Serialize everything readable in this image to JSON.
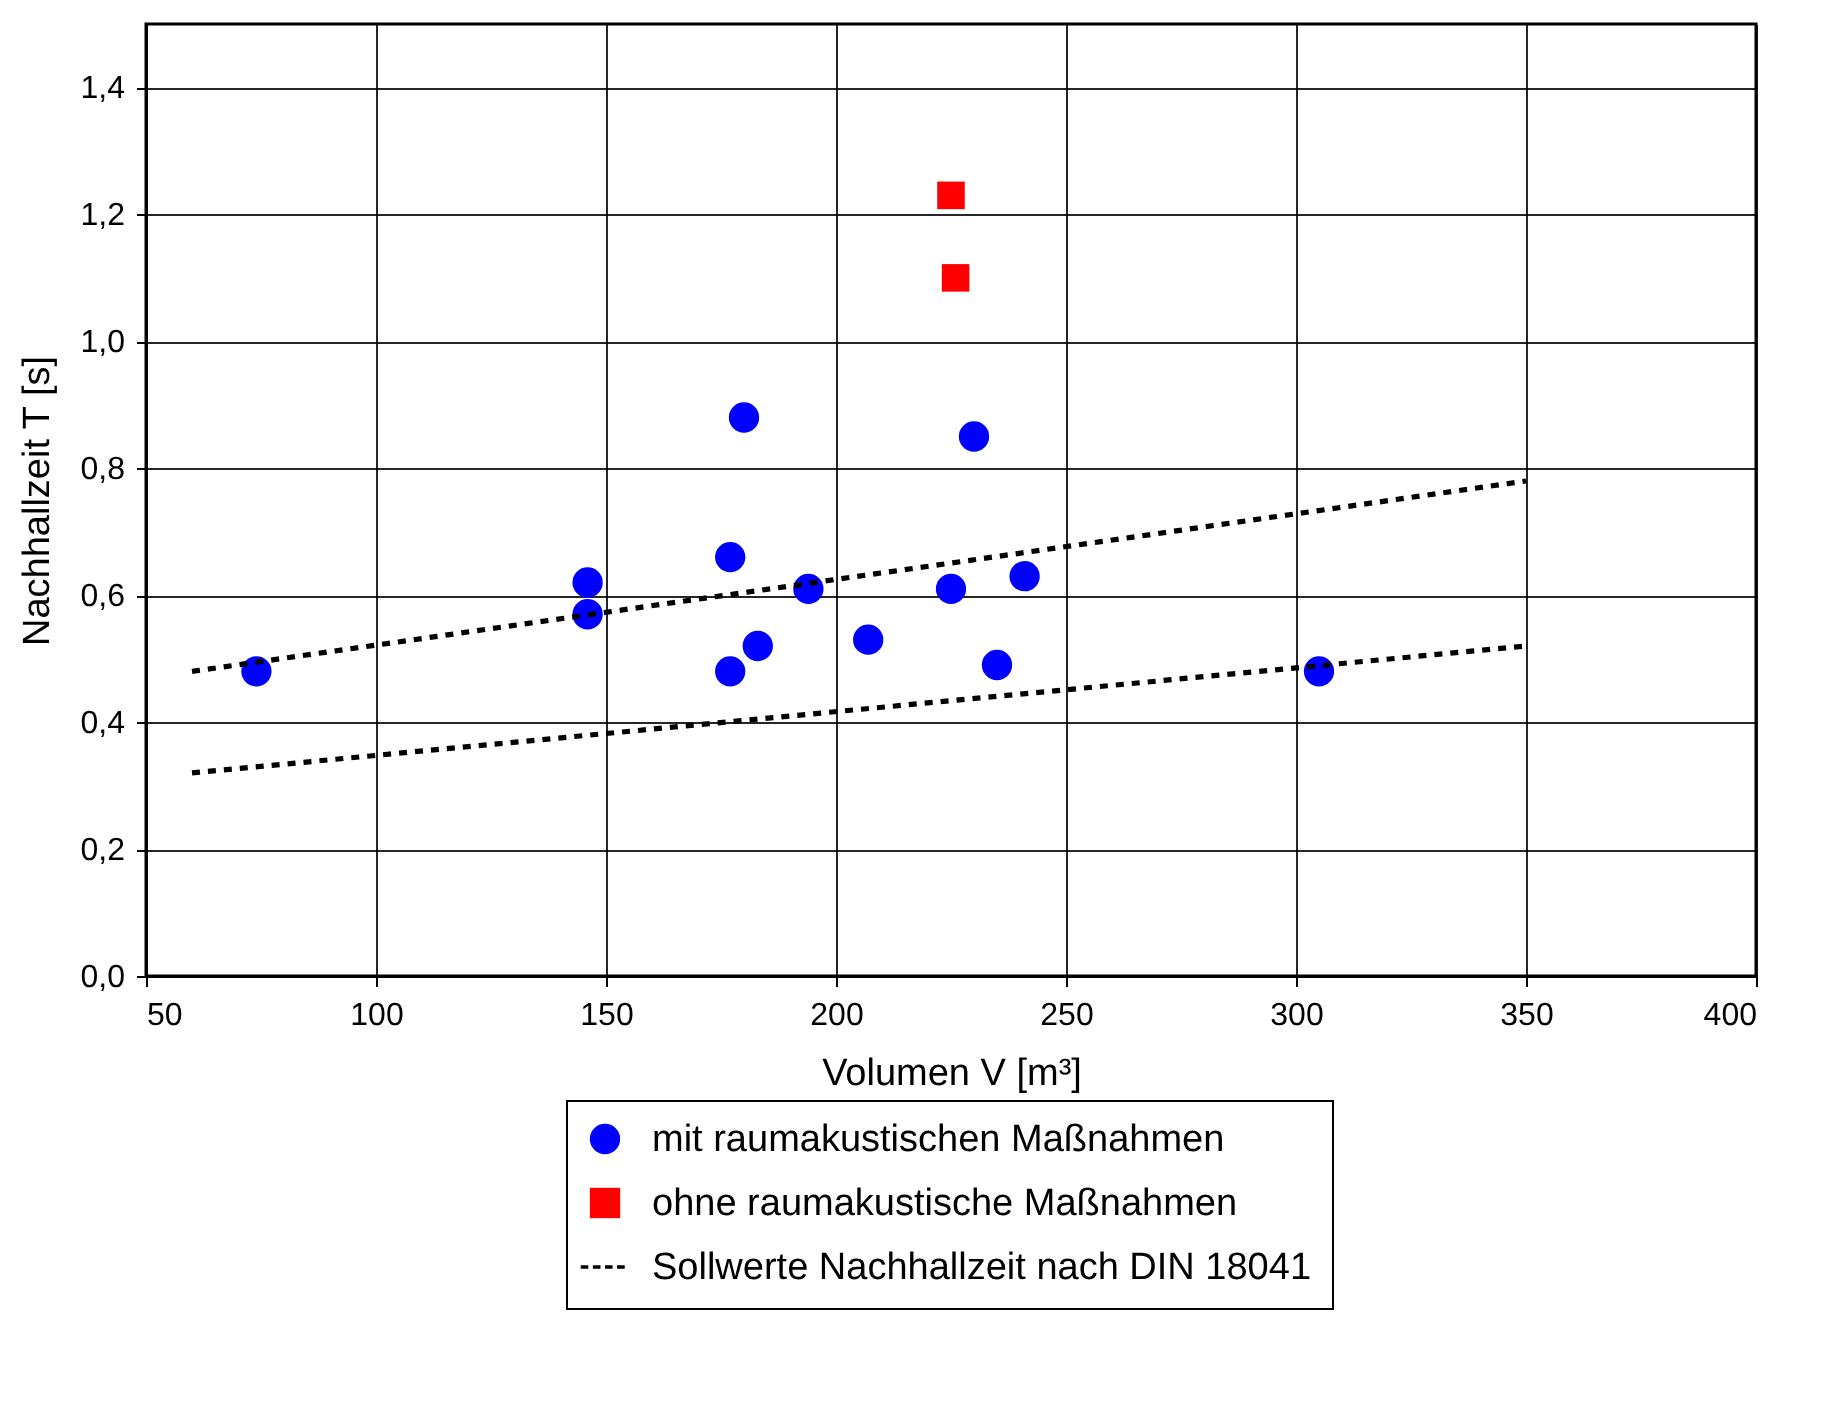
{
  "chart_data": {
    "type": "scatter",
    "xlabel": "Volumen V [m³]",
    "ylabel": "Nachhallzeit T [s]",
    "xlim": [
      50,
      400
    ],
    "xticks": [
      50,
      100,
      150,
      200,
      250,
      300,
      350,
      400
    ],
    "ylim": [
      0,
      1.5
    ],
    "yticks": [
      {
        "value": 0,
        "label": "0,0"
      },
      {
        "value": 0.2,
        "label": "0,2"
      },
      {
        "value": 0.4,
        "label": "0,4"
      },
      {
        "value": 0.6,
        "label": "0,6"
      },
      {
        "value": 0.8,
        "label": "0,8"
      },
      {
        "value": 1.0,
        "label": "1,0"
      },
      {
        "value": 1.2,
        "label": "1,2"
      },
      {
        "value": 1.4,
        "label": "1,4"
      }
    ],
    "grid": true,
    "legend": "bottom",
    "series": [
      {
        "name": "mit raumakustischen Maßnahmen",
        "type": "scatter",
        "marker": "circle",
        "color": "#0000ff",
        "x": [
          74,
          146,
          146,
          177,
          177,
          180,
          183,
          194,
          207,
          225,
          230,
          241,
          235,
          305
        ],
        "values": [
          0.48,
          0.62,
          0.57,
          0.66,
          0.48,
          0.88,
          0.52,
          0.61,
          0.53,
          0.61,
          0.85,
          0.63,
          0.49,
          0.48
        ]
      },
      {
        "name": "ohne raumakustische Maßnahmen",
        "type": "scatter",
        "marker": "square",
        "color": "#ff0000",
        "x": [
          225,
          226
        ],
        "values": [
          1.23,
          1.1
        ]
      },
      {
        "name": "Sollwerte Nachhallzeit nach DIN 18041",
        "type": "line",
        "line_style": "dashed",
        "color": "#000000",
        "x": [
          60,
          350
        ],
        "values": [
          0.48,
          0.78
        ]
      },
      {
        "type": "line",
        "line_style": "dashed",
        "color": "#000000",
        "x": [
          60,
          350
        ],
        "values": [
          0.32,
          0.52
        ]
      }
    ]
  }
}
